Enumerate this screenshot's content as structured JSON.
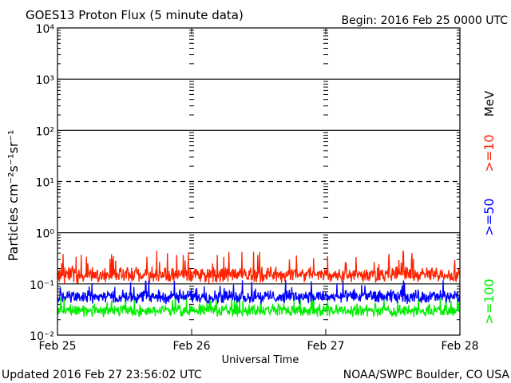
{
  "chart_data": {
    "type": "line",
    "title": "GOES13 Proton Flux (5 minute data)",
    "begin_label": "Begin: 2016 Feb 25 0000 UTC",
    "xlabel": "Universal Time",
    "ylabel": "Particles cm⁻²s⁻¹sr⁻¹",
    "y_scale": "log",
    "ylim": [
      0.01,
      10000
    ],
    "y_ticks": [
      {
        "value": 0.01,
        "label": "10⁻²"
      },
      {
        "value": 0.1,
        "label": "10⁻¹"
      },
      {
        "value": 1,
        "label": "10⁰"
      },
      {
        "value": 10,
        "label": "10¹"
      },
      {
        "value": 100,
        "label": "10²"
      },
      {
        "value": 1000,
        "label": "10³"
      },
      {
        "value": 10000,
        "label": "10⁴"
      }
    ],
    "xlim": [
      "2016-02-25T00:00",
      "2016-02-28T00:00"
    ],
    "x_ticks": [
      {
        "value": "2016-02-25T00:00",
        "label": "Feb 25"
      },
      {
        "value": "2016-02-26T00:00",
        "label": "Feb 26"
      },
      {
        "value": "2016-02-27T00:00",
        "label": "Feb 27"
      },
      {
        "value": "2016-02-28T00:00",
        "label": "Feb 28"
      }
    ],
    "data_end": "2016-02-27T23:55",
    "threshold_lines": [
      {
        "value": 10,
        "style": "dashed"
      },
      {
        "value": 1,
        "style": "solid"
      },
      {
        "value": 100,
        "style": "solid"
      },
      {
        "value": 1000,
        "style": "solid"
      },
      {
        "value": 0.1,
        "style": "solid"
      }
    ],
    "series": [
      {
        "name": ">=10",
        "color": "#ff2200",
        "typical": 0.15,
        "min": 0.1,
        "max": 0.45
      },
      {
        "name": ">=50",
        "color": "#0000ff",
        "typical": 0.06,
        "min": 0.04,
        "max": 0.12
      },
      {
        "name": ">=100",
        "color": "#00ee00",
        "typical": 0.03,
        "min": 0.022,
        "max": 0.07
      }
    ],
    "legend_unit": "MeV",
    "grid": true
  },
  "footer": {
    "updated": "Updated 2016 Feb 27 23:56:02 UTC",
    "source": "NOAA/SWPC Boulder, CO USA"
  }
}
